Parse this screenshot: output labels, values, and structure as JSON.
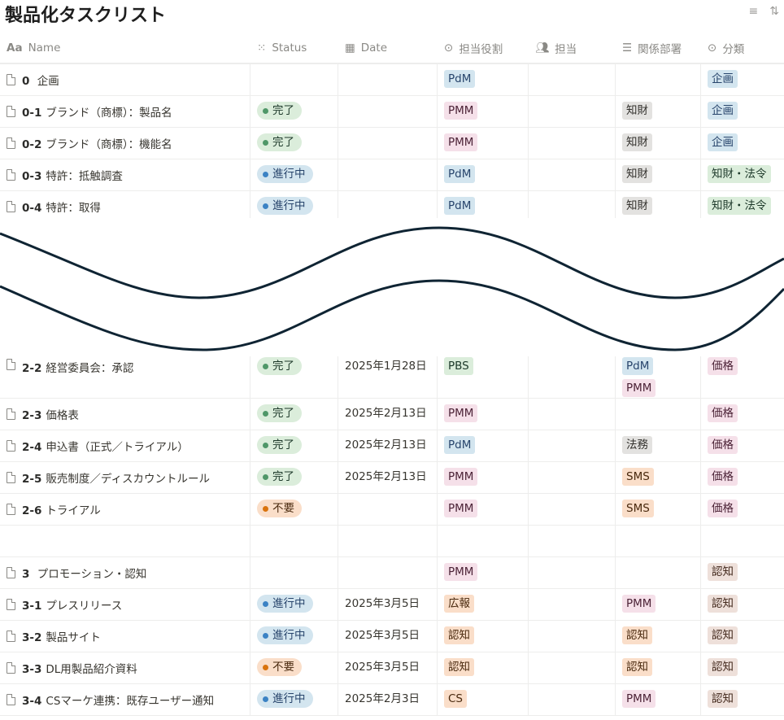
{
  "page_title": "製品化タスクリスト",
  "toolbar": {
    "filter_icon": "filter-icon",
    "sort_icon": "sort-icon"
  },
  "columns": [
    {
      "label": "Name",
      "icon": "text-aa-icon"
    },
    {
      "label": "Status",
      "icon": "status-spinner-icon"
    },
    {
      "label": "Date",
      "icon": "calendar-icon"
    },
    {
      "label": "担当役割",
      "icon": "select-icon"
    },
    {
      "label": "担当",
      "icon": "people-icon"
    },
    {
      "label": "関係部署",
      "icon": "list-icon"
    },
    {
      "label": "分類",
      "icon": "select-icon"
    }
  ],
  "colors": {
    "tags": {
      "blue": [
        "#d3e5ef",
        "#28456c"
      ],
      "pink": [
        "#f5e0e9",
        "#4c2337"
      ],
      "gray": [
        "#e3e2e0",
        "#32302c"
      ],
      "green": [
        "#dbeddb",
        "#1c3829"
      ],
      "orange": [
        "#fadec9",
        "#49290e"
      ],
      "brown": [
        "#eee0da",
        "#442a1e"
      ]
    },
    "status": {
      "green": [
        "#dbeddb",
        "#4f9768",
        "#1c3829"
      ],
      "blue": [
        "#d3e5ef",
        "#3b82c4",
        "#28456c"
      ],
      "orange": [
        "#fadec9",
        "#d9730d",
        "#49290e"
      ]
    }
  },
  "top_rows": [
    {
      "num": "0",
      "title": " 企画",
      "status": null,
      "date": "",
      "role": [
        [
          "PdM",
          "blue"
        ]
      ],
      "assignee": "",
      "depts": [],
      "category": [
        [
          "企画",
          "blue"
        ]
      ]
    },
    {
      "num": "0-1",
      "title": "ブランド（商標）：製品名",
      "status": [
        "完了",
        "green"
      ],
      "date": "",
      "role": [
        [
          "PMM",
          "pink"
        ]
      ],
      "assignee": "",
      "depts": [
        [
          "知財",
          "gray"
        ]
      ],
      "category": [
        [
          "企画",
          "blue"
        ]
      ]
    },
    {
      "num": "0-2",
      "title": "ブランド（商標）：機能名",
      "status": [
        "完了",
        "green"
      ],
      "date": "",
      "role": [
        [
          "PMM",
          "pink"
        ]
      ],
      "assignee": "",
      "depts": [
        [
          "知財",
          "gray"
        ]
      ],
      "category": [
        [
          "企画",
          "blue"
        ]
      ]
    },
    {
      "num": "0-3",
      "title": "特許：抵触調査",
      "status": [
        "進行中",
        "blue"
      ],
      "date": "",
      "role": [
        [
          "PdM",
          "blue"
        ]
      ],
      "assignee": "",
      "depts": [
        [
          "知財",
          "gray"
        ]
      ],
      "category": [
        [
          "知財・法令",
          "green"
        ]
      ]
    },
    {
      "num": "0-4",
      "title": "特許：取得",
      "status": [
        "進行中",
        "blue"
      ],
      "date": "",
      "role": [
        [
          "PdM",
          "blue"
        ]
      ],
      "assignee": "",
      "depts": [
        [
          "知財",
          "gray"
        ]
      ],
      "category": [
        [
          "知財・法令",
          "green"
        ]
      ]
    }
  ],
  "bottom_rows": [
    {
      "num": "2-2",
      "title": "経営委員会：承認",
      "status": [
        "完了",
        "green"
      ],
      "date": "2025年1月28日",
      "role": [
        [
          "PBS",
          "green"
        ]
      ],
      "assignee": "",
      "depts": [
        [
          "PdM",
          "blue"
        ],
        [
          "PMM",
          "pink"
        ]
      ],
      "category": [
        [
          "価格",
          "pink"
        ]
      ]
    },
    {
      "num": "2-3",
      "title": "価格表",
      "status": [
        "完了",
        "green"
      ],
      "date": "2025年2月13日",
      "role": [
        [
          "PMM",
          "pink"
        ]
      ],
      "assignee": "",
      "depts": [],
      "category": [
        [
          "価格",
          "pink"
        ]
      ]
    },
    {
      "num": "2-4",
      "title": "申込書（正式／トライアル）",
      "status": [
        "完了",
        "green"
      ],
      "date": "2025年2月13日",
      "role": [
        [
          "PdM",
          "blue"
        ]
      ],
      "assignee": "",
      "depts": [
        [
          "法務",
          "gray"
        ]
      ],
      "category": [
        [
          "価格",
          "pink"
        ]
      ]
    },
    {
      "num": "2-5",
      "title": "販売制度／ディスカウントルール",
      "status": [
        "完了",
        "green"
      ],
      "date": "2025年2月13日",
      "role": [
        [
          "PMM",
          "pink"
        ]
      ],
      "assignee": "",
      "depts": [
        [
          "SMS",
          "orange"
        ]
      ],
      "category": [
        [
          "価格",
          "pink"
        ]
      ]
    },
    {
      "num": "2-6",
      "title": "トライアル",
      "status": [
        "不要",
        "orange"
      ],
      "date": "",
      "role": [
        [
          "PMM",
          "pink"
        ]
      ],
      "assignee": "",
      "depts": [
        [
          "SMS",
          "orange"
        ]
      ],
      "category": [
        [
          "価格",
          "pink"
        ]
      ]
    },
    null,
    {
      "num": "3",
      "title": " プロモーション・認知",
      "status": null,
      "date": "",
      "role": [
        [
          "PMM",
          "pink"
        ]
      ],
      "assignee": "",
      "depts": [],
      "category": [
        [
          "認知",
          "brown"
        ]
      ]
    },
    {
      "num": "3-1",
      "title": "プレスリリース",
      "status": [
        "進行中",
        "blue"
      ],
      "date": "2025年3月5日",
      "role": [
        [
          "広報",
          "orange"
        ]
      ],
      "assignee": "",
      "depts": [
        [
          "PMM",
          "pink"
        ]
      ],
      "category": [
        [
          "認知",
          "brown"
        ]
      ]
    },
    {
      "num": "3-2",
      "title": "製品サイト",
      "status": [
        "進行中",
        "blue"
      ],
      "date": "2025年3月5日",
      "role": [
        [
          "認知",
          "orange"
        ]
      ],
      "assignee": "",
      "depts": [
        [
          "認知",
          "orange"
        ]
      ],
      "category": [
        [
          "認知",
          "brown"
        ]
      ]
    },
    {
      "num": "3-3",
      "title": "DL用製品紹介資料",
      "status": [
        "不要",
        "orange"
      ],
      "date": "2025年3月5日",
      "role": [
        [
          "認知",
          "orange"
        ]
      ],
      "assignee": "",
      "depts": [
        [
          "認知",
          "orange"
        ]
      ],
      "category": [
        [
          "認知",
          "brown"
        ]
      ]
    },
    {
      "num": "3-4",
      "title": "CSマーケ連携：既存ユーザー通知",
      "status": [
        "進行中",
        "blue"
      ],
      "date": "2025年2月3日",
      "role": [
        [
          "CS",
          "orange"
        ]
      ],
      "assignee": "",
      "depts": [
        [
          "PMM",
          "pink"
        ]
      ],
      "category": [
        [
          "認知",
          "brown"
        ]
      ]
    }
  ]
}
